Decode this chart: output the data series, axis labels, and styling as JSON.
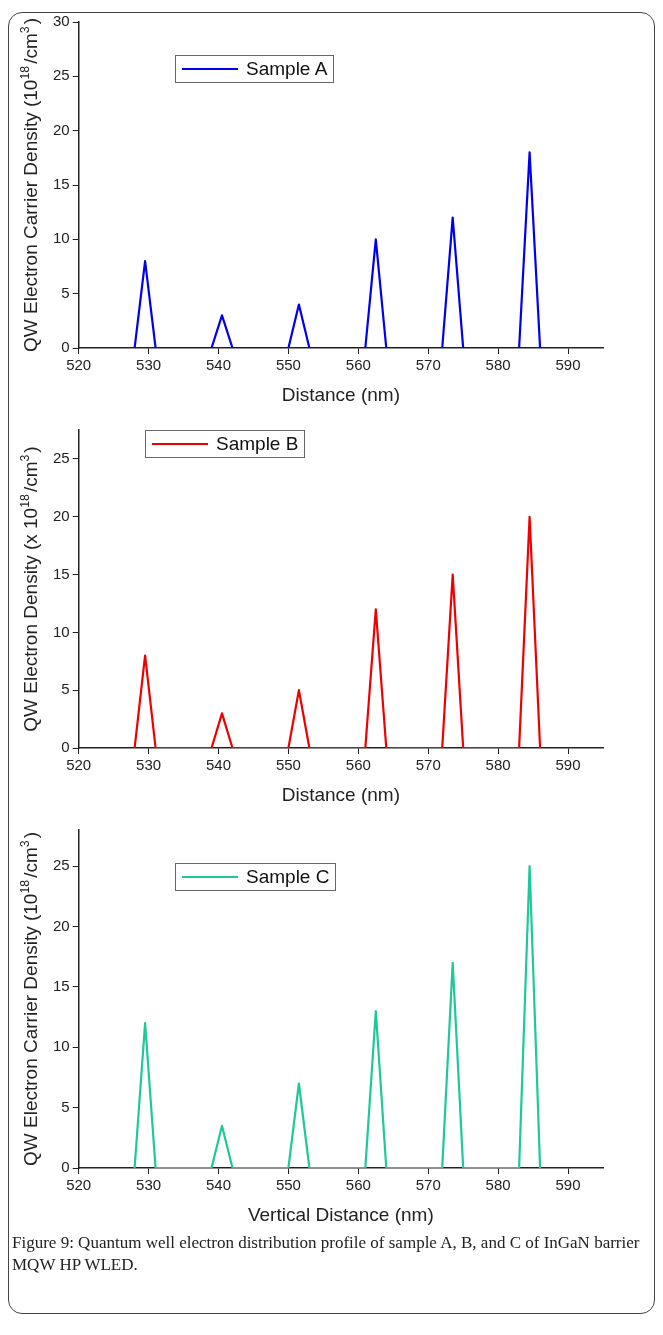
{
  "chart_data": [
    {
      "type": "line",
      "xlabel": "Distance (nm)",
      "ylabel": "QW Electron Carrier Density (10$^{18}$/cm$^{3}$)",
      "xlim": [
        520,
        595
      ],
      "xticks": [
        520,
        530,
        540,
        550,
        560,
        570,
        580,
        590
      ],
      "ylim": [
        0,
        30
      ],
      "yticks": [
        0,
        5,
        10,
        15,
        20,
        25,
        30
      ],
      "grid": false,
      "legend": "top left",
      "marker": "none",
      "series": [
        {
          "name": "Sample A",
          "color": "#0000ee",
          "x": [
            528,
            529.5,
            531,
            539,
            540.5,
            542,
            550,
            551.5,
            553,
            561,
            562.5,
            564,
            572,
            573.5,
            575,
            583,
            584.5,
            586
          ],
          "values": [
            0,
            8,
            0,
            0,
            3,
            0,
            0,
            4,
            0,
            0,
            10,
            0,
            0,
            12,
            0,
            0,
            18,
            0
          ]
        }
      ]
    },
    {
      "type": "line",
      "xlabel": "Distance (nm)",
      "ylabel": "QW Electron Density (x 10$^{18}$/cm$^{3}$)",
      "xlim": [
        520,
        595
      ],
      "xticks": [
        520,
        530,
        540,
        550,
        560,
        570,
        580,
        590
      ],
      "ylim": [
        0,
        27.5
      ],
      "yticks": [
        0,
        5,
        10,
        15,
        20,
        25
      ],
      "grid": false,
      "legend": "top left",
      "marker": "none",
      "series": [
        {
          "name": "Sample B",
          "color": "#ee0000",
          "x": [
            528,
            529.5,
            531,
            539,
            540.5,
            542,
            550,
            551.5,
            553,
            561,
            562.5,
            564,
            572,
            573.5,
            575,
            583,
            584.5,
            586
          ],
          "values": [
            0,
            8,
            0,
            0,
            3,
            0,
            0,
            5,
            0,
            0,
            12,
            0,
            0,
            15,
            0,
            0,
            20,
            0
          ]
        }
      ]
    },
    {
      "type": "line",
      "xlabel": "Vertical Distance (nm)",
      "ylabel": "QW Electron Carrier Density (10$^{18}$/cm$^{3}$)",
      "xlim": [
        520,
        595
      ],
      "xticks": [
        520,
        530,
        540,
        550,
        560,
        570,
        580,
        590
      ],
      "ylim": [
        0,
        28
      ],
      "yticks": [
        0,
        5,
        10,
        15,
        20,
        25
      ],
      "grid": false,
      "legend": "top left",
      "marker": "none",
      "series": [
        {
          "name": "Sample C",
          "color": "#1fc89a",
          "x": [
            528,
            529.5,
            531,
            539,
            540.5,
            542,
            550,
            551.5,
            553,
            561,
            562.5,
            564,
            572,
            573.5,
            575,
            583,
            584.5,
            586
          ],
          "values": [
            0,
            12,
            0,
            0,
            3.5,
            0,
            0,
            7,
            0,
            0,
            13,
            0,
            0,
            17,
            0,
            0,
            25,
            0
          ]
        }
      ],
      "annotations": [
        "Figure 9: Quantum well electron distribution profile of sample A, B, and C of InGaN barrier MQW HP WLED."
      ]
    }
  ]
}
